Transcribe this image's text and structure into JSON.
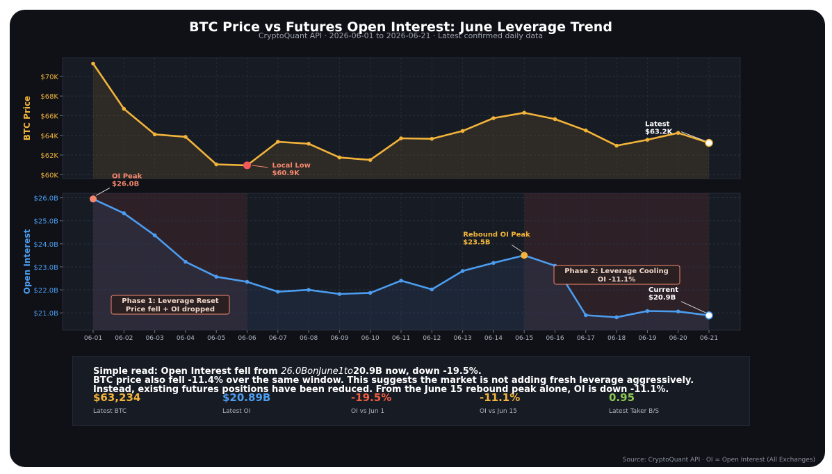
{
  "title": "BTC Price vs Futures Open Interest: June Leverage Trend",
  "subtitle": "CryptoQuant API · 2026-06-01 to 2026-06-21 · Latest confirmed daily data",
  "source": "Source: CryptoQuant API · OI = Open Interest (All Exchanges)",
  "colors": {
    "price": "#f2b43a",
    "oi": "#4c9df0",
    "low": "#f25a5a",
    "peak": "#f4886f",
    "negative": "#f05b3f",
    "positive": "#8cc653",
    "phase_label": "#f6a37f"
  },
  "chart_data": [
    {
      "type": "line",
      "ylabel": "BTC Price",
      "x": [
        "06-01",
        "06-02",
        "06-03",
        "06-04",
        "06-05",
        "06-06",
        "06-07",
        "06-08",
        "06-09",
        "06-10",
        "06-11",
        "06-12",
        "06-13",
        "06-14",
        "06-15",
        "06-16",
        "06-17",
        "06-18",
        "06-19",
        "06-20",
        "06-21"
      ],
      "values": [
        71300,
        66700,
        64100,
        63850,
        61050,
        60950,
        63350,
        63150,
        61750,
        61500,
        63700,
        63650,
        64450,
        65750,
        66300,
        65650,
        64500,
        62950,
        63550,
        64250,
        63234
      ],
      "yticks": [
        60000,
        62000,
        64000,
        66000,
        68000,
        70000
      ],
      "ytick_labels": [
        "$60K",
        "$62K",
        "$64K",
        "$66K",
        "$68K",
        "$70K"
      ],
      "ylim": [
        59600,
        71900
      ],
      "annotations": [
        {
          "index": 5,
          "line1": "Local Low",
          "line2": "$60.9K"
        },
        {
          "index": 20,
          "line1": "Latest",
          "line2": "$63.2K"
        }
      ]
    },
    {
      "type": "line",
      "ylabel": "Open Interest",
      "x": [
        "06-01",
        "06-02",
        "06-03",
        "06-04",
        "06-05",
        "06-06",
        "06-07",
        "06-08",
        "06-09",
        "06-10",
        "06-11",
        "06-12",
        "06-13",
        "06-14",
        "06-15",
        "06-16",
        "06-17",
        "06-18",
        "06-19",
        "06-20",
        "06-21"
      ],
      "values": [
        25.95,
        25.33,
        24.37,
        23.22,
        22.57,
        22.35,
        21.92,
        22.0,
        21.82,
        21.87,
        22.4,
        22.02,
        22.82,
        23.17,
        23.5,
        23.05,
        20.9,
        20.81,
        21.08,
        21.06,
        20.89
      ],
      "yticks": [
        21,
        22,
        23,
        24,
        25,
        26
      ],
      "ytick_labels": [
        "$21.0B",
        "$22.0B",
        "$23.0B",
        "$24.0B",
        "$25.0B",
        "$26.0B"
      ],
      "ylim": [
        20.25,
        26.2
      ],
      "annotations": [
        {
          "index": 0,
          "line1": "OI Peak",
          "line2": "$26.0B"
        },
        {
          "index": 14,
          "line1": "Rebound OI Peak",
          "line2": "$23.5B"
        },
        {
          "index": 20,
          "line1": "Current",
          "line2": "$20.9B"
        }
      ],
      "phases": [
        {
          "from": 0,
          "to": 5,
          "line1": "Phase 1: Leverage Reset",
          "line2": "Price fell + OI dropped"
        },
        {
          "from": 14,
          "to": 20,
          "line1": "Phase 2: Leverage Cooling",
          "line2": "OI -11.1%"
        }
      ]
    }
  ],
  "summary": {
    "line1_a": "Simple read: Open Interest fell from ",
    "line1_b": "26.0BonJune1to",
    "line1_c": "20.9B now, down -19.5%.",
    "line2": "BTC price also fell -11.4% over the same window. This suggests the market is not adding fresh leverage aggressively.",
    "line3": "Instead, existing futures positions have been reduced. From the June 15 rebound peak alone, OI is down -11.1%.",
    "metrics": [
      {
        "value": "$63,234",
        "label": "Latest BTC"
      },
      {
        "value": "$20.89B",
        "label": "Latest OI"
      },
      {
        "value": "-19.5%",
        "label": "OI vs Jun 1"
      },
      {
        "value": "-11.1%",
        "label": "OI vs Jun 15"
      },
      {
        "value": "0.95",
        "label": "Latest Taker B/S"
      }
    ]
  }
}
